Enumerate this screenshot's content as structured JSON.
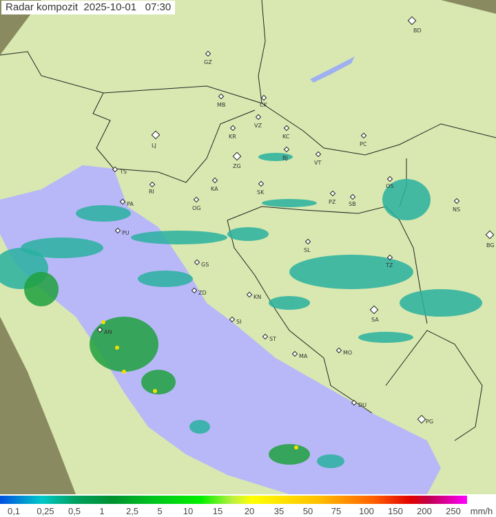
{
  "title": {
    "label": "Radar kompozit",
    "date": "2025-10-01",
    "time": "07:30"
  },
  "legend": {
    "unit": "mm/h",
    "ticks": [
      "0,1",
      "0,25",
      "0,5",
      "1",
      "2,5",
      "5",
      "10",
      "15",
      "20",
      "35",
      "50",
      "75",
      "100",
      "150",
      "200",
      "250"
    ],
    "colors": {
      "low": "#0050e0",
      "mid": "#00c020",
      "high": "#ff00ff"
    }
  },
  "map": {
    "colors": {
      "land": "#d8e8b0",
      "sea": "#b8b8f8",
      "outside": "#8a8a60",
      "rain_light": "#2ab0a0",
      "rain_moderate": "#20a040",
      "rain_heavy": "#f0e000"
    },
    "cities": [
      "BD",
      "GZ",
      "MB",
      "CK",
      "VZ",
      "KR",
      "KC",
      "PC",
      "LJ",
      "ZG",
      "BJ",
      "VT",
      "TS",
      "KA",
      "RI",
      "SK",
      "OS",
      "PZ",
      "SB",
      "PA",
      "OG",
      "NS",
      "PU",
      "BG",
      "SL",
      "GS",
      "TZ",
      "ZD",
      "KN",
      "SA",
      "SI",
      "AN",
      "ST",
      "MA",
      "MO",
      "DU",
      "PG"
    ]
  }
}
